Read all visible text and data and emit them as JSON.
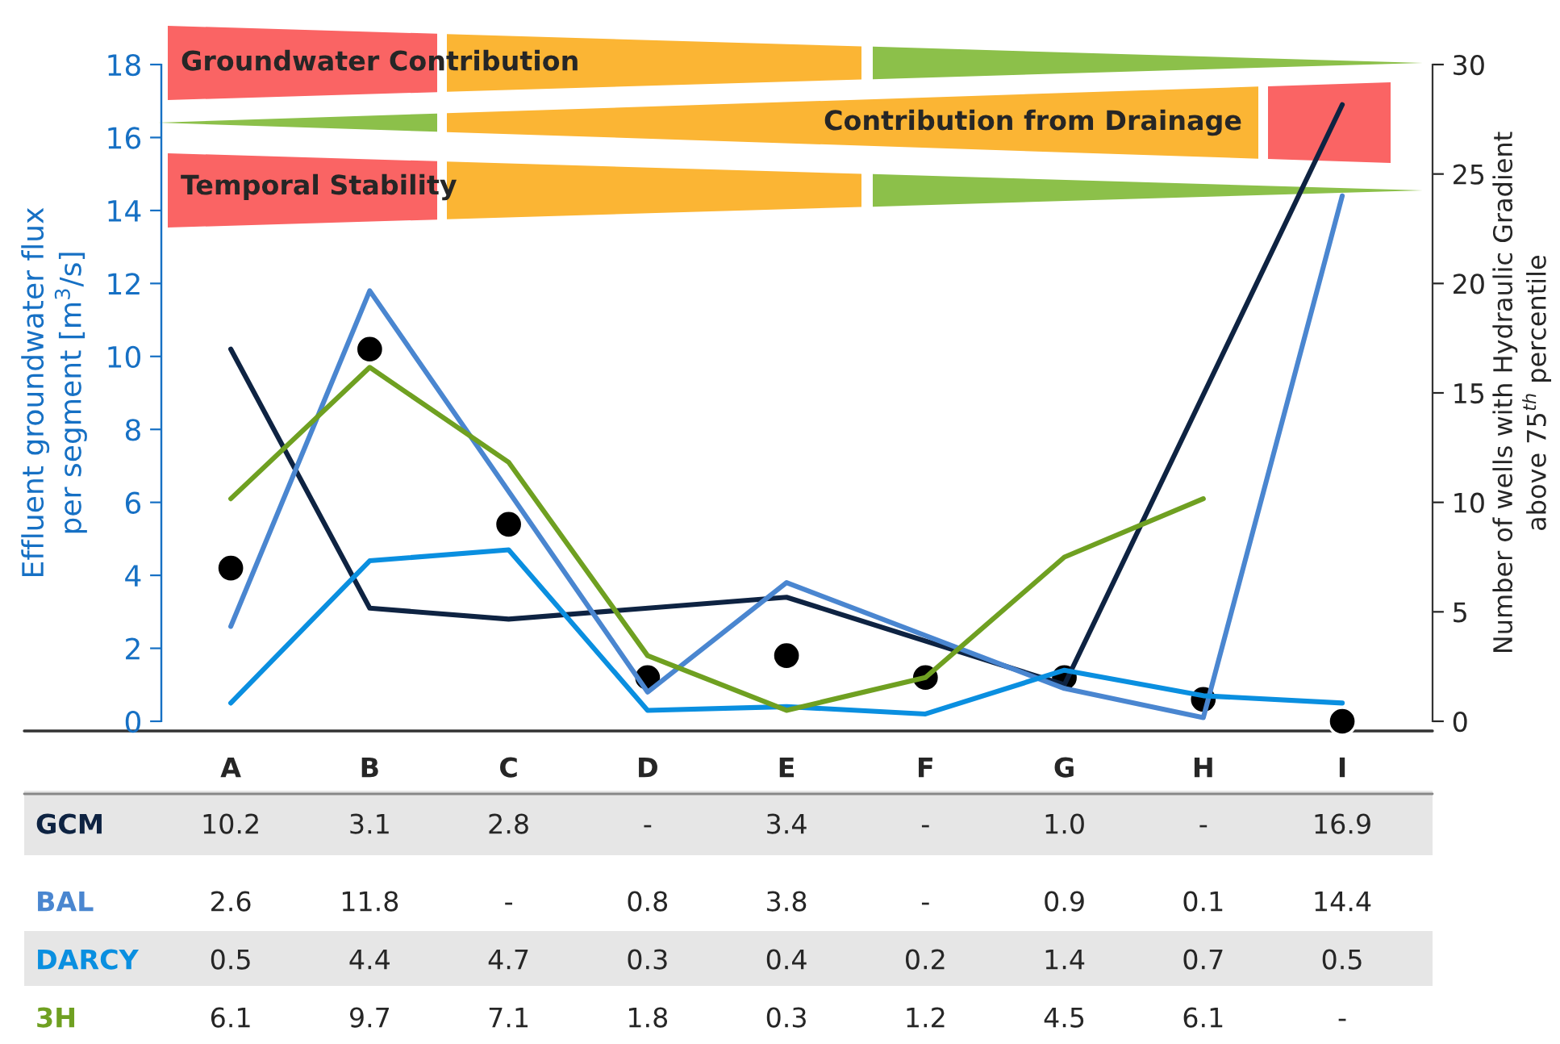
{
  "chart_data": {
    "type": "line",
    "categories": [
      "A",
      "B",
      "C",
      "D",
      "E",
      "F",
      "G",
      "H",
      "I"
    ],
    "series": [
      {
        "name": "GCM",
        "color": "#0e2342",
        "values": [
          10.2,
          3.1,
          2.8,
          null,
          3.4,
          null,
          1.0,
          null,
          16.9
        ],
        "value_labels": [
          "10.2",
          "3.1",
          "2.8",
          "-",
          "3.4",
          "-",
          "1.0",
          "-",
          "16.9"
        ]
      },
      {
        "name": "BAL",
        "color": "#4a86d0",
        "values": [
          2.6,
          11.8,
          null,
          0.8,
          3.8,
          null,
          0.9,
          0.1,
          14.4
        ],
        "value_labels": [
          "2.6",
          "11.8",
          "-",
          "0.8",
          "3.8",
          "-",
          "0.9",
          "0.1",
          "14.4"
        ]
      },
      {
        "name": "DARCY",
        "color": "#0a8fe0",
        "values": [
          0.5,
          4.4,
          4.7,
          0.3,
          0.4,
          0.2,
          1.4,
          0.7,
          0.5
        ],
        "value_labels": [
          "0.5",
          "4.4",
          "4.7",
          "0.3",
          "0.4",
          "0.2",
          "1.4",
          "0.7",
          "0.5"
        ]
      },
      {
        "name": "3H",
        "color": "#6fa021",
        "values": [
          6.1,
          9.7,
          7.1,
          1.8,
          0.3,
          1.2,
          4.5,
          6.1,
          null
        ],
        "value_labels": [
          "6.1",
          "9.7",
          "7.1",
          "1.8",
          "0.3",
          "1.2",
          "4.5",
          "6.1",
          "-"
        ]
      },
      {
        "type": "scatter",
        "axis": "y2",
        "marker": "circle",
        "color": "#000000",
        "values": [
          7,
          17,
          9,
          2,
          3,
          2,
          2,
          1,
          0
        ]
      }
    ],
    "ylabel": "Effluent groundwater flux\nper segment [m$^{3}$/s]",
    "y2label": "Number of wells with Hydraulic Gradient\nabove 75$^{th}$ percentile",
    "ylim": [
      0,
      18
    ],
    "yticks": [
      0,
      2,
      4,
      6,
      8,
      10,
      12,
      14,
      16,
      18
    ],
    "y2lim": [
      0,
      30
    ],
    "y2ticks": [
      0,
      5,
      10,
      15,
      20,
      25,
      30
    ],
    "annotations": [
      "Groundwater Contribution",
      "Contribution from Drainage",
      "Temporal Stability"
    ],
    "grid": false,
    "legend": false,
    "marker": "none",
    "line_style": "solid"
  }
}
